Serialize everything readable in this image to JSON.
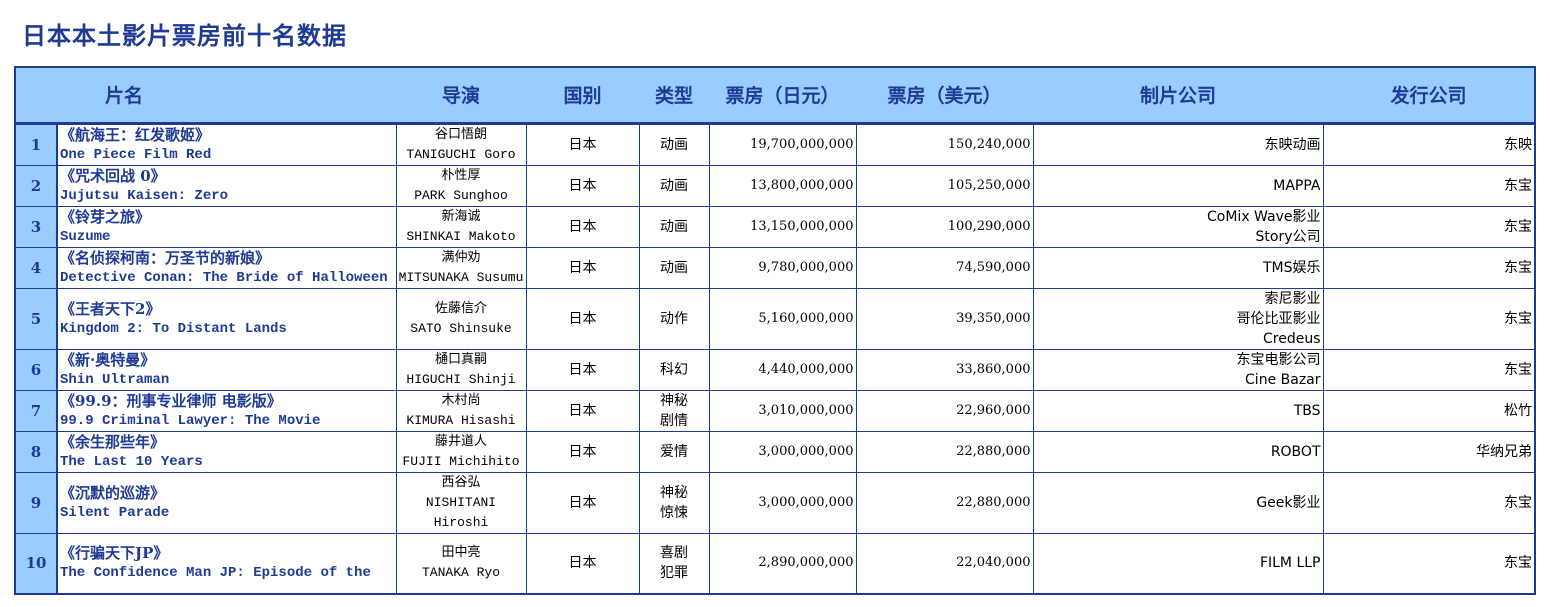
{
  "title": "日本本土影片票房前十名数据",
  "headers": {
    "film": "片名",
    "director": "导演",
    "country": "国别",
    "genre": "类型",
    "gross_jpy": "票房（日元）",
    "gross_usd": "票房（美元）",
    "producer": "制片公司",
    "distributor": "发行公司"
  },
  "rows": [
    {
      "rank": "1",
      "title_cn": "《航海王：红发歌姬》",
      "title_en": "One Piece Film Red",
      "director": [
        "谷口悟朗",
        "TANIGUCHI Goro"
      ],
      "country": "日本",
      "genre": [
        "动画"
      ],
      "gross_jpy": "19,700,000,000",
      "gross_usd": "150,240,000",
      "producer": [
        "东映动画"
      ],
      "distributor": "东映"
    },
    {
      "rank": "2",
      "title_cn": "《咒术回战 0》",
      "title_en": "Jujutsu Kaisen: Zero",
      "director": [
        "朴性厚",
        "PARK Sunghoo"
      ],
      "country": "日本",
      "genre": [
        "动画"
      ],
      "gross_jpy": "13,800,000,000",
      "gross_usd": "105,250,000",
      "producer": [
        "MAPPA"
      ],
      "distributor": "东宝"
    },
    {
      "rank": "3",
      "title_cn": "《铃芽之旅》",
      "title_en": "Suzume",
      "director": [
        "新海诚",
        "SHINKAI Makoto"
      ],
      "country": "日本",
      "genre": [
        "动画"
      ],
      "gross_jpy": "13,150,000,000",
      "gross_usd": "100,290,000",
      "producer": [
        "CoMix Wave影业",
        "Story公司"
      ],
      "distributor": "东宝"
    },
    {
      "rank": "4",
      "title_cn": "《名侦探柯南：万圣节的新娘》",
      "title_en": "Detective Conan: The Bride of Halloween",
      "director": [
        "满仲劝",
        "MITSUNAKA Susumu"
      ],
      "country": "日本",
      "genre": [
        "动画"
      ],
      "gross_jpy": "9,780,000,000",
      "gross_usd": "74,590,000",
      "producer": [
        "TMS娱乐"
      ],
      "distributor": "东宝"
    },
    {
      "rank": "5",
      "title_cn": "《王者天下2》",
      "title_en": "Kingdom 2: To Distant Lands",
      "director": [
        "佐藤信介",
        "SATO Shinsuke"
      ],
      "country": "日本",
      "genre": [
        "动作"
      ],
      "gross_jpy": "5,160,000,000",
      "gross_usd": "39,350,000",
      "producer": [
        "索尼影业",
        "哥伦比亚影业",
        "Credeus"
      ],
      "distributor": "东宝"
    },
    {
      "rank": "6",
      "title_cn": "《新·奥特曼》",
      "title_en": "Shin Ultraman",
      "director": [
        "樋口真嗣",
        "HIGUCHI Shinji"
      ],
      "country": "日本",
      "genre": [
        "科幻"
      ],
      "gross_jpy": "4,440,000,000",
      "gross_usd": "33,860,000",
      "producer": [
        "东宝电影公司",
        "Cine Bazar"
      ],
      "distributor": "东宝"
    },
    {
      "rank": "7",
      "title_cn": "《99.9：刑事专业律师 电影版》",
      "title_en": "99.9 Criminal Lawyer: The Movie",
      "director": [
        "木村尚",
        "KIMURA Hisashi"
      ],
      "country": "日本",
      "genre": [
        "神秘",
        "剧情"
      ],
      "gross_jpy": "3,010,000,000",
      "gross_usd": "22,960,000",
      "producer": [
        "TBS"
      ],
      "distributor": "松竹"
    },
    {
      "rank": "8",
      "title_cn": "《余生那些年》",
      "title_en": "The Last 10 Years",
      "director": [
        "藤井道人",
        "FUJII Michihito"
      ],
      "country": "日本",
      "genre": [
        "爱情"
      ],
      "gross_jpy": "3,000,000,000",
      "gross_usd": "22,880,000",
      "producer": [
        "ROBOT"
      ],
      "distributor": "华纳兄弟"
    },
    {
      "rank": "9",
      "title_cn": "《沉默的巡游》",
      "title_en": "Silent Parade",
      "director": [
        "西谷弘",
        "NISHITANI",
        "Hiroshi"
      ],
      "country": "日本",
      "genre": [
        "神秘",
        "惊悚"
      ],
      "gross_jpy": "3,000,000,000",
      "gross_usd": "22,880,000",
      "producer": [
        "Geek影业"
      ],
      "distributor": "东宝"
    },
    {
      "rank": "10",
      "title_cn": "《行骗天下JP》",
      "title_en": "The Confidence Man JP: Episode of the Hero",
      "director": [
        "田中亮",
        "TANAKA Ryo"
      ],
      "country": "日本",
      "genre": [
        "喜剧",
        "犯罪"
      ],
      "gross_jpy": "2,890,000,000",
      "gross_usd": "22,040,000",
      "producer": [
        "FILM LLP"
      ],
      "distributor": "东宝"
    }
  ]
}
